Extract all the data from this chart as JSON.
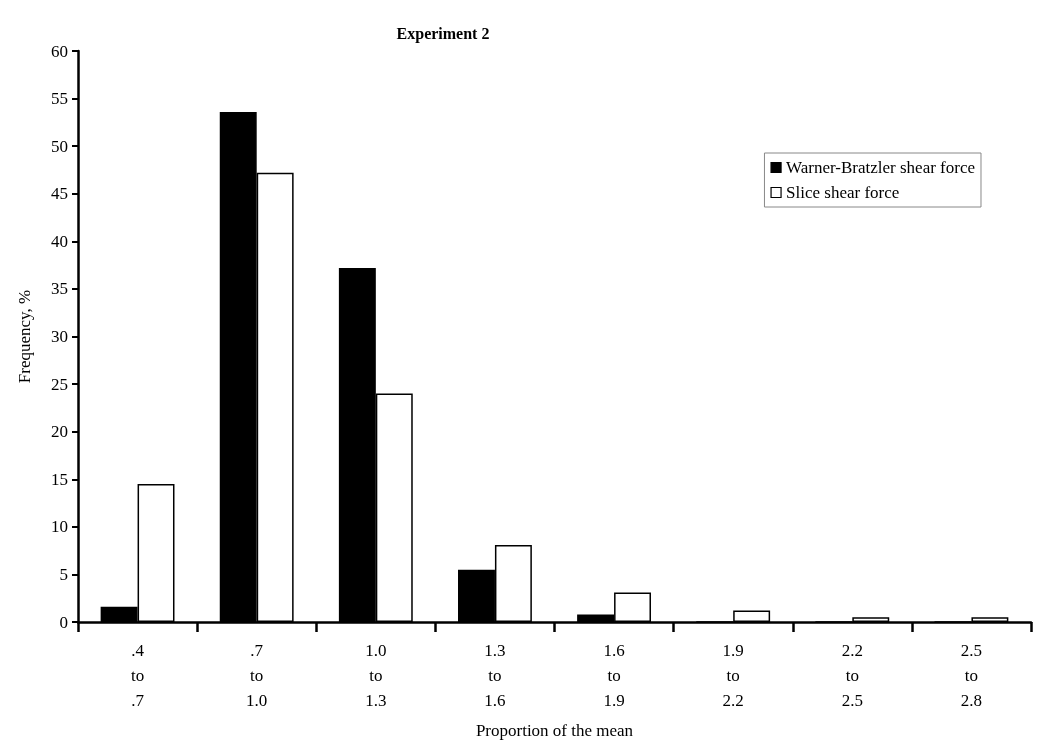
{
  "chart_data": {
    "type": "bar",
    "title": "Experiment 2",
    "xlabel": "Proportion of the mean",
    "ylabel": "Frequency, %",
    "categories": [
      ".4\nto\n.7",
      ".7\nto\n1.0",
      "1.0\nto\n1.3",
      "1.3\nto\n1.6",
      "1.6\nto\n1.9",
      "1.9\nto\n2.2",
      "2.2\nto\n2.5",
      "2.5\nto\n2.8"
    ],
    "series": [
      {
        "name": "Warner-Bratzler shear force",
        "color": "#000000",
        "values": [
          1.6,
          53.6,
          37.2,
          5.5,
          0.8,
          0,
          0,
          0
        ]
      },
      {
        "name": "Slice shear force",
        "color": "#ffffff",
        "values": [
          14.5,
          47.2,
          24.0,
          8.1,
          3.1,
          1.2,
          0.5,
          0.5
        ]
      }
    ],
    "ylim": [
      0,
      60
    ],
    "yticks": [
      0,
      5,
      10,
      15,
      20,
      25,
      30,
      35,
      40,
      45,
      50,
      55,
      60
    ],
    "grid": false,
    "legend": "top right"
  }
}
